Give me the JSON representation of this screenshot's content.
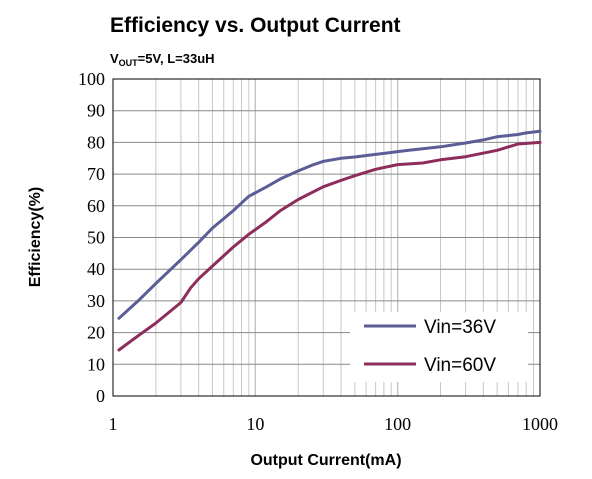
{
  "chart_data": {
    "type": "line",
    "title": "Efficiency vs. Output Current",
    "subtitle": {
      "prefix": "V",
      "sub": "OUT",
      "rest": "=5V, L=33uH"
    },
    "xlabel": "Output Current(mA)",
    "ylabel": "Efficiency(%)",
    "xscale": "log",
    "xlim": [
      1,
      1000
    ],
    "ylim": [
      0,
      100
    ],
    "xticks": [
      "1",
      "10",
      "100",
      "1000"
    ],
    "yticks": [
      "0",
      "10",
      "20",
      "30",
      "40",
      "50",
      "60",
      "70",
      "80",
      "90",
      "100"
    ],
    "grid": "vertical minor and major, horizontal major",
    "legend_position": "bottom-right",
    "series": [
      {
        "name": "Vin=36V",
        "color": "#5b5d96",
        "x": [
          1.1,
          1.5,
          2,
          3,
          4,
          5,
          7,
          9,
          12,
          15,
          20,
          25,
          30,
          40,
          50,
          70,
          100,
          120,
          150,
          200,
          300,
          400,
          500,
          700,
          800,
          1000
        ],
        "y": [
          24.5,
          30,
          35.5,
          43,
          48.5,
          53,
          58.5,
          63,
          66,
          68.5,
          71,
          72.8,
          74,
          75,
          75.4,
          76.2,
          77.1,
          77.5,
          78,
          78.6,
          79.8,
          80.8,
          81.8,
          82.5,
          83,
          83.5
        ]
      },
      {
        "name": "Vin=60V",
        "color": "#8c2d5c",
        "x": [
          1.1,
          1.5,
          2,
          3,
          3.5,
          4,
          5,
          7,
          9,
          12,
          15,
          20,
          30,
          40,
          50,
          70,
          100,
          150,
          200,
          300,
          500,
          700,
          1000
        ],
        "y": [
          14.5,
          19,
          23,
          29.5,
          34,
          37,
          41,
          47,
          51,
          55,
          58.5,
          62,
          66,
          68,
          69.5,
          71.5,
          73,
          73.5,
          74.5,
          75.5,
          77.5,
          79.5,
          80
        ]
      }
    ]
  }
}
